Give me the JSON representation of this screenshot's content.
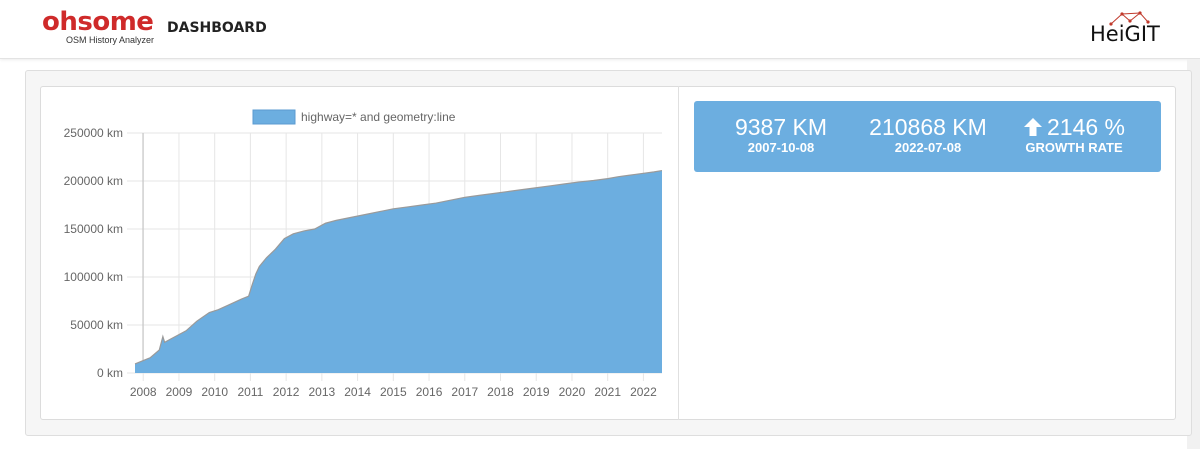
{
  "header": {
    "brand_name": "ohsome",
    "brand_suffix": "DASHBOARD",
    "brand_subtitle": "OSM History Analyzer",
    "partner_logo": "HeiGIT"
  },
  "stats": {
    "start_value": "9387 KM",
    "start_date": "2007-10-08",
    "end_value": "210868 KM",
    "end_date": "2022-07-08",
    "growth_value": "2146 %",
    "growth_label": "GROWTH RATE",
    "growth_icon": "arrow-up-icon"
  },
  "colors": {
    "accent": "#6caee0",
    "brand_red": "#cf2a2a",
    "area_fill": "#6caee0",
    "area_line": "#9a9a9a"
  },
  "chart_data": {
    "type": "area",
    "legend": [
      "highway=*  and geometry:line"
    ],
    "legend_placement": "top",
    "grid": true,
    "xlim": [
      2007.77,
      2022.52
    ],
    "ylim": [
      0,
      250000
    ],
    "y_ticks": [
      0,
      50000,
      100000,
      150000,
      200000,
      250000
    ],
    "y_tick_labels": [
      "0 km",
      "50000 km",
      "100000 km",
      "150000 km",
      "200000 km",
      "250000 km"
    ],
    "x_ticks": [
      2008,
      2009,
      2010,
      2011,
      2012,
      2013,
      2014,
      2015,
      2016,
      2017,
      2018,
      2019,
      2020,
      2021,
      2022
    ],
    "x_tick_labels": [
      "2008",
      "2009",
      "2010",
      "2011",
      "2012",
      "2013",
      "2014",
      "2015",
      "2016",
      "2017",
      "2018",
      "2019",
      "2020",
      "2021",
      "2022"
    ],
    "series": [
      {
        "name": "highway=*  and geometry:line",
        "x": [
          2007.77,
          2008.0,
          2008.2,
          2008.45,
          2008.55,
          2008.6,
          2008.9,
          2009.2,
          2009.5,
          2009.85,
          2010.1,
          2010.4,
          2010.75,
          2010.95,
          2011.05,
          2011.15,
          2011.25,
          2011.45,
          2011.7,
          2011.95,
          2012.2,
          2012.5,
          2012.8,
          2013.1,
          2013.4,
          2013.8,
          2014.2,
          2014.6,
          2015.0,
          2015.4,
          2015.8,
          2016.2,
          2016.6,
          2017.0,
          2017.4,
          2017.8,
          2018.2,
          2018.6,
          2019.0,
          2019.4,
          2019.8,
          2020.2,
          2020.6,
          2021.0,
          2021.3,
          2021.6,
          2022.0,
          2022.3,
          2022.52
        ],
        "values": [
          9387,
          13000,
          16000,
          24000,
          38000,
          32000,
          38000,
          44000,
          54000,
          63000,
          66000,
          71000,
          77000,
          80000,
          92000,
          103000,
          111000,
          120000,
          129000,
          140000,
          145000,
          148000,
          150000,
          156000,
          159000,
          162000,
          165000,
          168000,
          171000,
          173000,
          175000,
          177000,
          180000,
          183000,
          185000,
          187000,
          189000,
          191000,
          193000,
          195000,
          197000,
          199000,
          200500,
          202500,
          204500,
          206000,
          208000,
          209500,
          210868
        ]
      }
    ]
  }
}
